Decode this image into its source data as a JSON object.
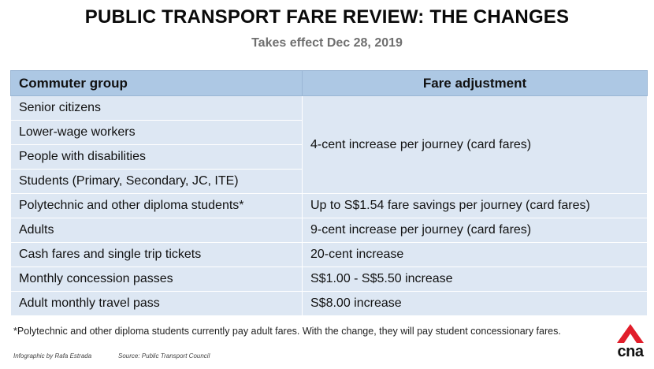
{
  "title": "PUBLIC TRANSPORT FARE REVIEW: THE CHANGES",
  "subtitle": "Takes effect Dec 28, 2019",
  "table": {
    "headers": [
      "Commuter group",
      "Fare adjustment"
    ],
    "rows": [
      [
        "Senior citizens",
        "4-cent increase per journey (card fares)"
      ],
      [
        "Lower-wage workers",
        ""
      ],
      [
        "People with disabilities",
        ""
      ],
      [
        "Students (Primary, Secondary, JC, ITE)",
        ""
      ],
      [
        "Polytechnic and other diploma students*",
        "Up to S$1.54 fare savings per journey (card fares)"
      ],
      [
        "Adults",
        "9-cent increase per journey (card fares)"
      ],
      [
        "Cash fares and single trip tickets",
        "20-cent increase"
      ],
      [
        "Monthly concession passes",
        "S$1.00 - S$5.50 increase"
      ],
      [
        "Adult monthly travel pass",
        "S$8.00 increase"
      ]
    ]
  },
  "footnote": "*Polytechnic and other diploma students currently pay adult fares. With the change, they will pay student concessionary fares.",
  "credits": {
    "infographic": "Infographic by Rafa Estrada",
    "source": "Source: Public Transport Council"
  },
  "logo": {
    "text": "cna",
    "color": "#e11d2a"
  }
}
